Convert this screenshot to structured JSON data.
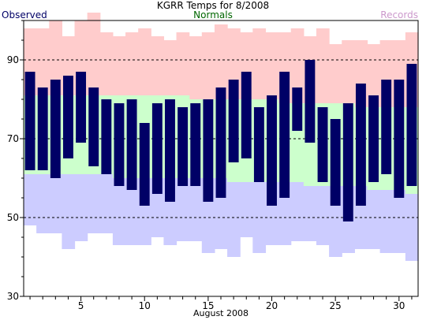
{
  "chart_data": {
    "type": "bar",
    "title": "KGRR Temps for 8/2008",
    "xlabel": "August 2008",
    "ylabel": "",
    "ylim": [
      30,
      100
    ],
    "xlim": [
      0.5,
      31.5
    ],
    "yticks": [
      30,
      50,
      70,
      90
    ],
    "xticks": [
      5,
      10,
      15,
      20,
      25,
      30
    ],
    "dashed_gridlines": [
      50,
      70,
      90
    ],
    "legend": [
      {
        "name": "Observed",
        "color": "#000066"
      },
      {
        "name": "Normals",
        "color": "#006600"
      },
      {
        "name": "Records",
        "color": "#cc99cc"
      }
    ],
    "days": [
      1,
      2,
      3,
      4,
      5,
      6,
      7,
      8,
      9,
      10,
      11,
      12,
      13,
      14,
      15,
      16,
      17,
      18,
      19,
      20,
      21,
      22,
      23,
      24,
      25,
      26,
      27,
      28,
      29,
      30,
      31
    ],
    "series": [
      {
        "name": "Records",
        "color": "#ffcccc",
        "low_color": "#ccccff",
        "high": [
          98,
          98,
          100,
          96,
          100,
          102,
          97,
          96,
          97,
          98,
          96,
          95,
          97,
          96,
          97,
          99,
          98,
          97,
          98,
          97,
          97,
          98,
          96,
          98,
          94,
          95,
          95,
          94,
          95,
          95,
          97
        ],
        "low": [
          48,
          46,
          46,
          42,
          44,
          46,
          46,
          43,
          43,
          43,
          45,
          43,
          44,
          44,
          41,
          42,
          40,
          45,
          41,
          43,
          43,
          44,
          44,
          43,
          40,
          41,
          42,
          42,
          41,
          41,
          39
        ]
      },
      {
        "name": "Normals",
        "color": "#ccffcc",
        "high": [
          81,
          81,
          81,
          81,
          81,
          81,
          81,
          81,
          81,
          81,
          81,
          81,
          81,
          80,
          80,
          80,
          80,
          80,
          80,
          80,
          79,
          79,
          79,
          79,
          79,
          79,
          78,
          78,
          78,
          78,
          78
        ],
        "low": [
          61,
          61,
          61,
          61,
          61,
          61,
          61,
          60,
          60,
          60,
          60,
          60,
          60,
          60,
          60,
          60,
          59,
          59,
          59,
          59,
          59,
          59,
          58,
          58,
          58,
          58,
          58,
          57,
          57,
          57,
          56
        ]
      },
      {
        "name": "Observed",
        "color": "#000066",
        "high": [
          87,
          83,
          85,
          86,
          87,
          83,
          80,
          79,
          80,
          74,
          79,
          80,
          78,
          79,
          80,
          83,
          85,
          87,
          78,
          81,
          87,
          83,
          90,
          78,
          75,
          79,
          84,
          81,
          85,
          85,
          89
        ],
        "low": [
          62,
          62,
          60,
          65,
          69,
          63,
          61,
          58,
          57,
          53,
          56,
          54,
          58,
          58,
          54,
          55,
          64,
          65,
          59,
          53,
          55,
          72,
          69,
          59,
          53,
          49,
          53,
          59,
          61,
          55,
          58
        ]
      }
    ]
  }
}
